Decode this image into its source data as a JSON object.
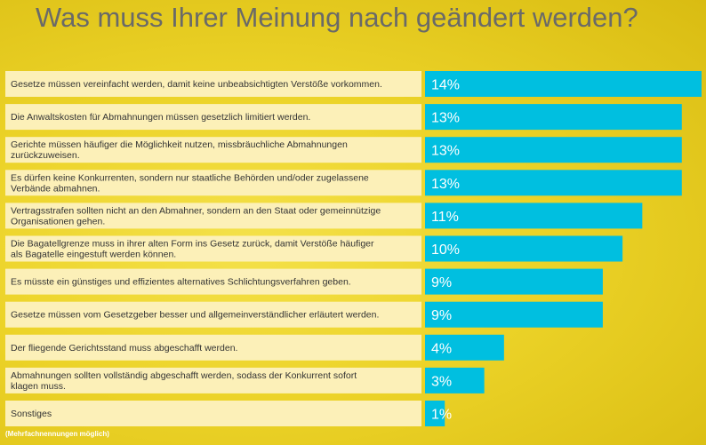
{
  "chart_data": {
    "type": "bar",
    "orientation": "horizontal",
    "title": "Was muss Ihrer Meinung nach geändert werden?",
    "note": "(Mehrfachnennungen möglich)",
    "categories": [
      "Gesetze müssen vereinfacht werden, damit keine unbeabsichtigten Verstöße vorkommen.",
      "Die Anwaltskosten für Abmahnungen müssen gesetzlich limitiert werden.",
      "Gerichte müssen häufiger die Möglichkeit nutzen, missbräuchliche Abmahnungen zurückzuweisen.",
      "Es dürfen keine Konkurrenten, sondern nur staatliche Behörden und/oder zugelassene Verbände abmahnen.",
      "Vertragsstrafen sollten nicht an den Abmahner, sondern an den Staat oder gemeinnützige Organisationen gehen.",
      "Die Bagatellgrenze muss in ihrer alten Form ins Gesetz zurück, damit Verstöße häufiger als Bagatelle eingestuft werden können.",
      "Es müsste ein günstiges und effizientes alternatives Schlichtungsverfahren geben.",
      "Gesetze müssen vom Gesetzgeber besser und allgemeinverständlicher erläutert werden.",
      "Der fliegende Gerichtsstand muss abgeschafft werden.",
      "Abmahnungen sollten vollständig abgeschafft werden, sodass der Konkurrent sofort klagen muss.",
      "Sonstiges"
    ],
    "values": [
      14,
      13,
      13,
      13,
      11,
      10,
      9,
      9,
      4,
      3,
      1
    ],
    "value_labels": [
      "14%",
      "13%",
      "13%",
      "13%",
      "11%",
      "10%",
      "9%",
      "9%",
      "4%",
      "3%",
      "1%"
    ],
    "xlim": [
      0,
      14
    ],
    "grid": false,
    "legend": "none"
  },
  "colors": {
    "bar": "#00bfe0",
    "label_box": "#fcf0b8",
    "value_text": "#ffffff",
    "label_text": "#333333",
    "title_text": "#6a6a68"
  }
}
